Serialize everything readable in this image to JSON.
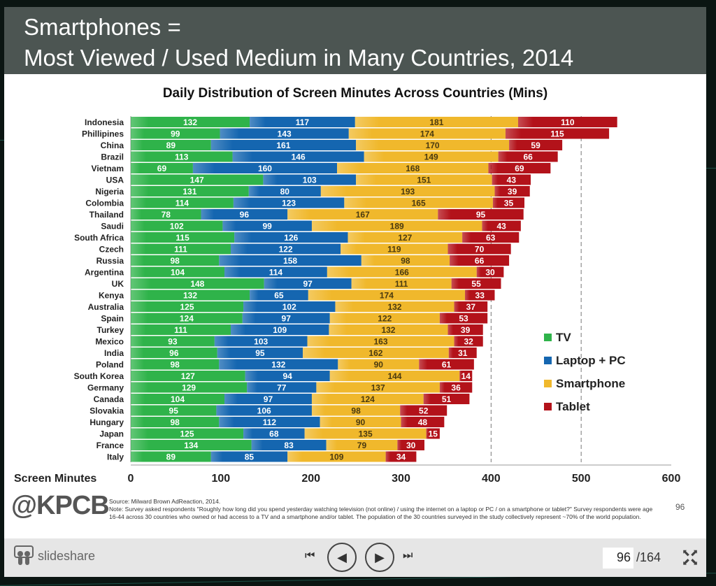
{
  "slide": {
    "title_line1": "Smartphones =",
    "title_line2": "Most Viewed / Used Medium in Many Countries, 2014",
    "logo": "@KPCB",
    "source": "Source: Milward Brown AdReaction, 2014.",
    "note": "Note: Survey asked respondents \"Roughly how long did you spend yesterday    watching television (not online) / using the internet on a laptop or PC / on a smartphone or tablet?\" Survey respondents were age 16-44 across 30 countries who owned or had access to a TV and a smartphone and/or tablet. The population of the 30 countries surveyed in the study collectively represent ~70% of the world population.",
    "page_number": "96"
  },
  "player": {
    "brand": "slideshare",
    "current_page": "96",
    "total_pages": "/164"
  },
  "chart_data": {
    "type": "bar",
    "orientation": "horizontal",
    "stacked": true,
    "title": "Daily Distribution of Screen Minutes Across Countries (Mins)",
    "xlabel": "Screen Minutes",
    "xlim": [
      0,
      600
    ],
    "xticks": [
      "0",
      "100",
      "200",
      "300",
      "400",
      "500",
      "600"
    ],
    "reference_lines": [
      400,
      500
    ],
    "legend_position": "right",
    "categories": [
      "Indonesia",
      "Phillipines",
      "China",
      "Brazil",
      "Vietnam",
      "USA",
      "Nigeria",
      "Colombia",
      "Thailand",
      "Saudi",
      "South Africa",
      "Czech",
      "Russia",
      "Argentina",
      "UK",
      "Kenya",
      "Australia",
      "Spain",
      "Turkey",
      "Mexico",
      "India",
      "Poland",
      "South Korea",
      "Germany",
      "Canada",
      "Slovakia",
      "Hungary",
      "Japan",
      "France",
      "Italy"
    ],
    "series": [
      {
        "name": "TV",
        "color": "#2fb34a",
        "values": [
          132,
          99,
          89,
          113,
          69,
          147,
          131,
          114,
          78,
          102,
          115,
          111,
          98,
          104,
          148,
          132,
          125,
          124,
          111,
          93,
          96,
          98,
          127,
          129,
          104,
          95,
          98,
          125,
          134,
          89
        ]
      },
      {
        "name": "Laptop + PC",
        "color": "#1566b0",
        "values": [
          117,
          143,
          161,
          146,
          160,
          103,
          80,
          123,
          96,
          99,
          126,
          122,
          158,
          114,
          97,
          65,
          102,
          97,
          109,
          103,
          95,
          132,
          94,
          77,
          97,
          106,
          112,
          68,
          83,
          85
        ]
      },
      {
        "name": "Smartphone",
        "color": "#f0b82c",
        "values": [
          181,
          174,
          170,
          149,
          168,
          151,
          193,
          165,
          167,
          189,
          127,
          119,
          98,
          166,
          111,
          174,
          132,
          122,
          132,
          163,
          162,
          90,
          144,
          137,
          124,
          98,
          90,
          135,
          79,
          109
        ]
      },
      {
        "name": "Tablet",
        "color": "#b3121a",
        "values": [
          110,
          115,
          59,
          66,
          69,
          43,
          39,
          35,
          95,
          43,
          63,
          70,
          66,
          30,
          55,
          33,
          37,
          53,
          39,
          32,
          31,
          61,
          14,
          36,
          51,
          52,
          48,
          15,
          30,
          34
        ]
      }
    ]
  }
}
